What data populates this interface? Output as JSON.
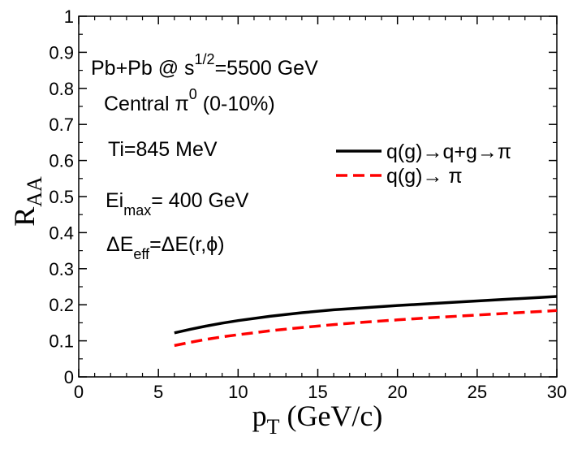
{
  "chart_data": {
    "type": "line",
    "xlabel_main": "p",
    "xlabel_sub": "T",
    "xlabel_unit": " (GeV/c)",
    "ylabel_main": "R",
    "ylabel_sub": "AA",
    "xlim": [
      0,
      30
    ],
    "ylim": [
      0,
      1
    ],
    "xticks": [
      0,
      5,
      10,
      15,
      20,
      25,
      30
    ],
    "xtick_labels": [
      "0",
      "5",
      "10",
      "15",
      "20",
      "25",
      "30"
    ],
    "yticks": [
      0,
      0.1,
      0.2,
      0.3,
      0.4,
      0.5,
      0.6,
      0.7,
      0.8,
      0.9,
      1
    ],
    "ytick_labels": [
      "0",
      "0.1",
      "0.2",
      "0.3",
      "0.4",
      "0.5",
      "0.6",
      "0.7",
      "0.8",
      "0.9",
      "1"
    ],
    "series": [
      {
        "name": "q(g)→q+g→π",
        "color": "#000000",
        "dash": "solid",
        "x": [
          6,
          7,
          8,
          9,
          10,
          12,
          14,
          16,
          18,
          20,
          22,
          24,
          26,
          28,
          30
        ],
        "y": [
          0.122,
          0.132,
          0.141,
          0.149,
          0.156,
          0.168,
          0.178,
          0.186,
          0.192,
          0.198,
          0.203,
          0.208,
          0.213,
          0.218,
          0.223
        ]
      },
      {
        "name": "q(g)→ π",
        "color": "#ff0000",
        "dash": "dashed",
        "x": [
          6,
          7,
          8,
          9,
          10,
          12,
          14,
          16,
          18,
          20,
          22,
          24,
          26,
          28,
          30
        ],
        "y": [
          0.087,
          0.096,
          0.104,
          0.111,
          0.117,
          0.128,
          0.137,
          0.145,
          0.152,
          0.158,
          0.164,
          0.169,
          0.174,
          0.179,
          0.184
        ]
      }
    ]
  },
  "annotations": {
    "line1_main": "Pb+Pb @  s",
    "line1_sup": "1/2",
    "line1_rest": "=5500 GeV",
    "line2_main": "Central  π",
    "line2_sup": "0",
    "line2_rest": " (0-10%)",
    "line3": "Ti=845 MeV",
    "line4_main": "Ei",
    "line4_sub": "max",
    "line4_rest": "= 400 GeV",
    "line5_main": "ΔE",
    "line5_sub": "eff",
    "line5_rest": "=ΔE(r,ϕ)"
  }
}
